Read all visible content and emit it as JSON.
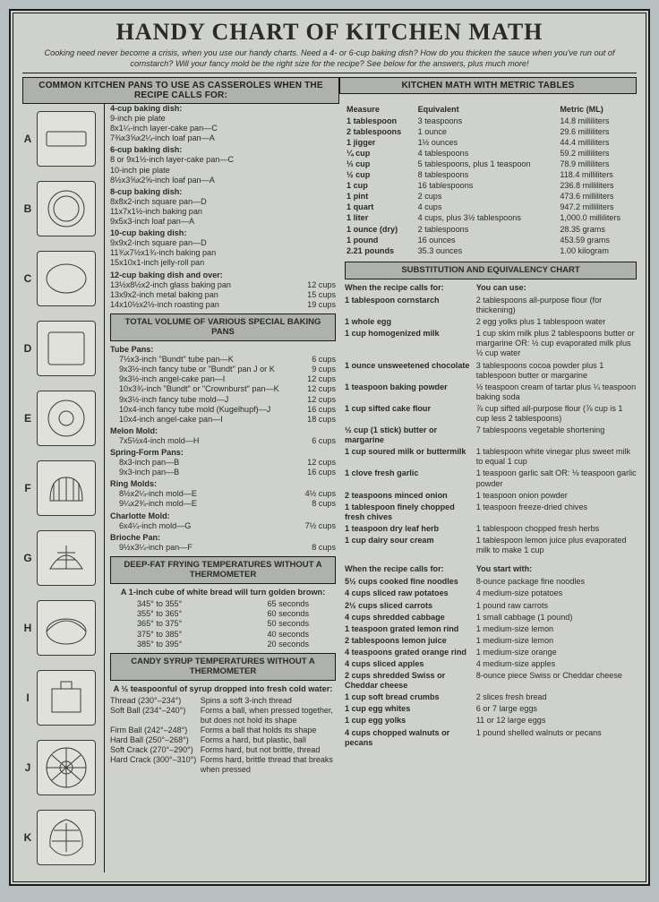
{
  "title": "HANDY CHART OF KITCHEN MATH",
  "subtitle": "Cooking need never become a crisis, when you use our handy charts. Need a 4- or 6-cup baking dish? How do you thicken the sauce when you've run out of cornstarch? Will your fancy mold be the right size for the recipe? See below for the answers, plus much more!",
  "pansHead": "COMMON KITCHEN PANS TO USE AS CASSEROLES WHEN THE RECIPE CALLS FOR:",
  "metricHead": "KITCHEN MATH WITH METRIC TABLES",
  "subHead": "SUBSTITUTION AND EQUIVALENCY CHART",
  "volHead": "TOTAL VOLUME OF VARIOUS SPECIAL BAKING PANS",
  "fryHead": "DEEP-FAT FRYING TEMPERATURES WITHOUT A THERMOMETER",
  "candyHead": "CANDY SYRUP TEMPERATURES WITHOUT A THERMOMETER",
  "fryIntro": "A 1-inch cube of white bread will turn golden brown:",
  "candyIntro": "A ½ teaspoonful of syrup dropped into fresh cold water:",
  "panLetters": [
    "A",
    "B",
    "C",
    "D",
    "E",
    "F",
    "G",
    "H",
    "I",
    "J",
    "K"
  ],
  "baking": {
    "b4": {
      "h": "4-cup baking dish:",
      "lines": [
        "9-inch pie plate",
        "8x1¼-inch layer-cake pan—C",
        "7⅜x3⅝x2¼-inch loaf pan—A"
      ]
    },
    "b6": {
      "h": "6-cup baking dish:",
      "lines": [
        "8 or 9x1½-inch layer-cake pan—C",
        "10-inch pie plate",
        "8½x3⅝x2⅝-inch loaf pan—A"
      ]
    },
    "b8": {
      "h": "8-cup baking dish:",
      "lines": [
        "8x8x2-inch square pan—D",
        "11x7x1½-inch baking pan",
        "9x5x3-inch loaf pan—A"
      ]
    },
    "b10": {
      "h": "10-cup baking dish:",
      "lines": [
        "9x9x2-inch square pan—D",
        "11¾x7½x1¾-inch baking pan",
        "15x10x1-inch jelly-roll pan"
      ]
    },
    "b12": {
      "h": "12-cup baking dish and over:",
      "lines": [
        [
          "13½x8½x2-inch glass baking pan",
          "12 cups"
        ],
        [
          "13x9x2-inch metal baking pan",
          "15 cups"
        ],
        [
          "14x10½x2½-inch roasting pan",
          "19 cups"
        ]
      ]
    }
  },
  "volumes": {
    "tube": {
      "h": "Tube Pans:",
      "rows": [
        [
          "7½x3-inch \"Bundt\" tube pan—K",
          "6 cups"
        ],
        [
          "9x3½-inch fancy tube or \"Bundt\" pan J or K",
          "9 cups"
        ],
        [
          "9x3½-inch angel-cake pan—I",
          "12 cups"
        ],
        [
          "10x3¾-inch \"Bundt\" or \"Crownburst\" pan—K",
          "12 cups"
        ],
        [
          "9x3½-inch fancy tube mold—J",
          "12 cups"
        ],
        [
          "10x4-inch fancy tube mold (Kugelhupf)—J",
          "16 cups"
        ],
        [
          "10x4-inch angel-cake pan—I",
          "18 cups"
        ]
      ]
    },
    "melon": {
      "h": "Melon Mold:",
      "rows": [
        [
          "7x5½x4-inch mold—H",
          "6 cups"
        ]
      ]
    },
    "spring": {
      "h": "Spring-Form Pans:",
      "rows": [
        [
          "8x3-inch pan—B",
          "12 cups"
        ],
        [
          "9x3-inch pan—B",
          "16 cups"
        ]
      ]
    },
    "ring": {
      "h": "Ring Molds:",
      "rows": [
        [
          "8½x2¼-inch mold—E",
          "4½ cups"
        ],
        [
          "9¼x2¾-inch mold—E",
          "8 cups"
        ]
      ]
    },
    "charlotte": {
      "h": "Charlotte Mold:",
      "rows": [
        [
          "6x4¼-inch mold—G",
          "7½ cups"
        ]
      ]
    },
    "brioche": {
      "h": "Brioche Pan:",
      "rows": [
        [
          "9½x3¼-inch pan—F",
          "8 cups"
        ]
      ]
    }
  },
  "fry": [
    [
      "345° to 355°",
      "65 seconds"
    ],
    [
      "355° to 365°",
      "60 seconds"
    ],
    [
      "365° to 375°",
      "50 seconds"
    ],
    [
      "375° to 385°",
      "40 seconds"
    ],
    [
      "385° to 395°",
      "20 seconds"
    ]
  ],
  "candy": [
    [
      "Thread (230°–234°)",
      "Spins a soft 3-inch thread"
    ],
    [
      "Soft Ball (234°–240°)",
      "Forms a ball, when pressed together, but does not hold its shape"
    ],
    [
      "Firm Ball (242°–248°)",
      "Forms a ball that holds its shape"
    ],
    [
      "Hard Ball (250°–268°)",
      "Forms a hard, but plastic, ball"
    ],
    [
      "Soft Crack (270°–290°)",
      "Forms hard, but not brittle, thread"
    ],
    [
      "Hard Crack (300°–310°)",
      "Forms hard, brittle thread that breaks when pressed"
    ]
  ],
  "metricCols": [
    "Measure",
    "Equivalent",
    "Metric (ML)"
  ],
  "metric": [
    [
      "1 tablespoon",
      "3 teaspoons",
      "14.8 milliliters"
    ],
    [
      "2 tablespoons",
      "1 ounce",
      "29.6 milliliters"
    ],
    [
      "1 jigger",
      "1½ ounces",
      "44.4 milliliters"
    ],
    [
      "¼ cup",
      "4 tablespoons",
      "59.2 milliliters"
    ],
    [
      "⅓ cup",
      "5 tablespoons, plus 1 teaspoon",
      "78.9 milliliters"
    ],
    [
      "½ cup",
      "8 tablespoons",
      "118.4 milliliters"
    ],
    [
      "1 cup",
      "16 tablespoons",
      "236.8 milliliters"
    ],
    [
      "1 pint",
      "2 cups",
      "473.6 milliliters"
    ],
    [
      "1 quart",
      "4 cups",
      "947.2 milliliters"
    ],
    [
      "1 liter",
      "4 cups, plus 3½ tablespoons",
      "1,000.0 milliliters"
    ],
    [
      "1 ounce (dry)",
      "2 tablespoons",
      "28.35 grams"
    ],
    [
      "1 pound",
      "16 ounces",
      "453.59 grams"
    ],
    [
      "2.21 pounds",
      "35.3 ounces",
      "1.00 kilogram"
    ]
  ],
  "subCols1": [
    "When the recipe calls for:",
    "You can use:"
  ],
  "subs1": [
    [
      "1 tablespoon cornstarch",
      "2 tablespoons all-purpose flour (for thickening)"
    ],
    [
      "1 whole egg",
      "2 egg yolks plus 1 tablespoon water"
    ],
    [
      "1 cup homogenized milk",
      "1 cup skim milk plus 2 tablespoons butter or margarine OR: ½ cup evaporated milk plus ½ cup water"
    ],
    [
      "1 ounce unsweetened chocolate",
      "3 tablespoons cocoa powder plus 1 tablespoon butter or margarine"
    ],
    [
      "1 teaspoon baking powder",
      "½ teaspoon cream of tartar plus ¼ teaspoon baking soda"
    ],
    [
      "1 cup sifted cake flour",
      "⅞ cup sifted all-purpose flour (⅞ cup is 1 cup less 2 tablespoons)"
    ],
    [
      "½ cup (1 stick) butter or margarine",
      "7 tablespoons vegetable shortening"
    ],
    [
      "1 cup soured milk or buttermilk",
      "1 tablespoon white vinegar plus sweet milk to equal 1 cup"
    ],
    [
      "1 clove fresh garlic",
      "1 teaspoon garlic salt OR: ⅛ teaspoon garlic powder"
    ],
    [
      "2 teaspoons minced onion",
      "1 teaspoon onion powder"
    ],
    [
      "1 tablespoon finely chopped fresh chives",
      "1 teaspoon freeze-dried chives"
    ],
    [
      "1 teaspoon dry leaf herb",
      "1 tablespoon chopped fresh herbs"
    ],
    [
      "1 cup dairy sour cream",
      "1 tablespoon lemon juice plus evaporated milk to make 1 cup"
    ]
  ],
  "subCols2": [
    "When the recipe calls for:",
    "You start with:"
  ],
  "subs2": [
    [
      "5½ cups cooked fine noodles",
      "8-ounce package fine noodles"
    ],
    [
      "4 cups sliced raw potatoes",
      "4 medium-size potatoes"
    ],
    [
      "2½ cups sliced carrots",
      "1 pound raw carrots"
    ],
    [
      "4 cups shredded cabbage",
      "1 small cabbage (1 pound)"
    ],
    [
      "1 teaspoon grated lemon rind",
      "1 medium-size lemon"
    ],
    [
      "2 tablespoons lemon juice",
      "1 medium-size lemon"
    ],
    [
      "4 teaspoons grated orange rind",
      "1 medium-size orange"
    ],
    [
      "4 cups sliced apples",
      "4 medium-size apples"
    ],
    [
      "2 cups shredded Swiss or Cheddar cheese",
      "8-ounce piece Swiss or Cheddar cheese"
    ],
    [
      "1 cup soft bread crumbs",
      "2 slices fresh bread"
    ],
    [
      "1 cup egg whites",
      "6 or 7 large eggs"
    ],
    [
      "1 cup egg yolks",
      "11 or 12 large eggs"
    ],
    [
      "4 cups chopped walnuts or pecans",
      "1 pound shelled walnuts or pecans"
    ]
  ]
}
